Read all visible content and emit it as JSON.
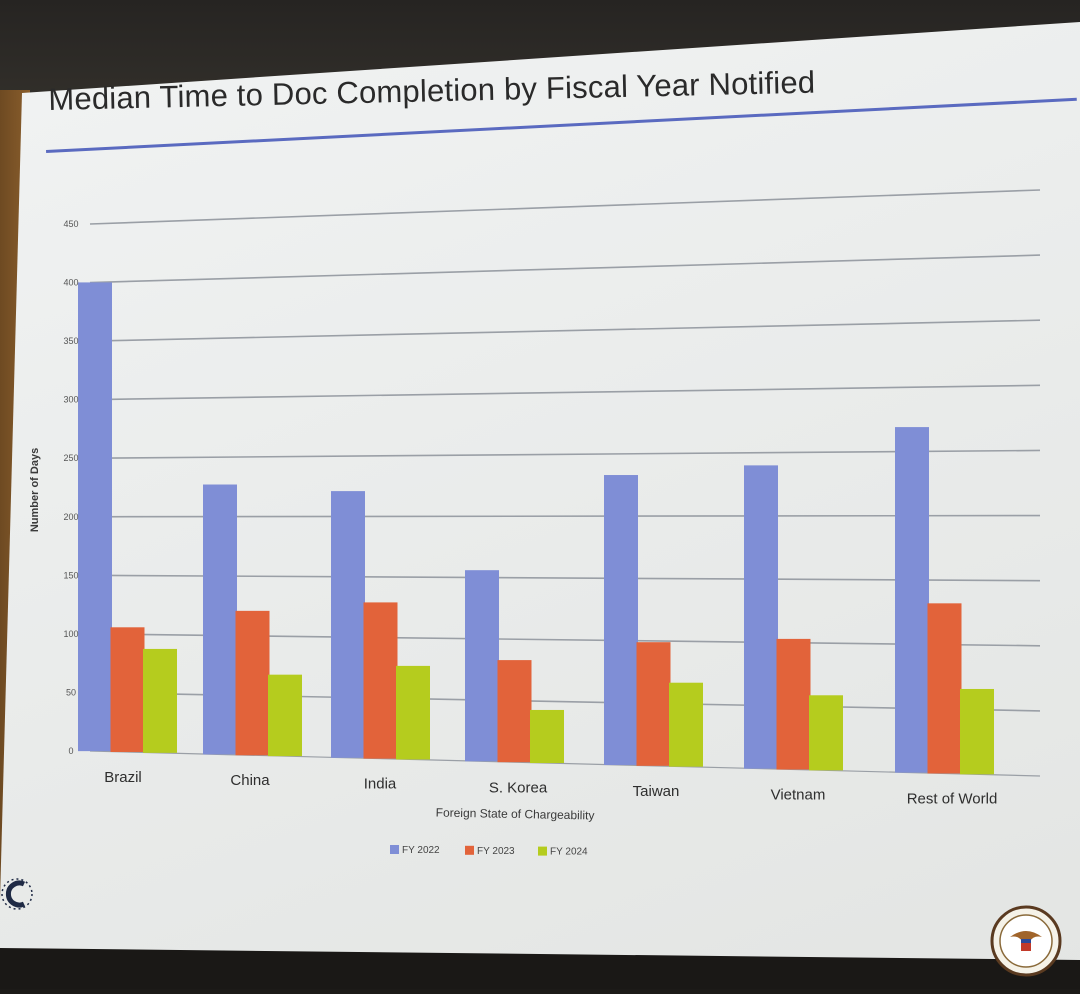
{
  "slide": {
    "title": "Median Time to Doc Completion by Fiscal Year Notified"
  },
  "colors": {
    "fy2022": "#7f8ed6",
    "fy2023": "#e2633a",
    "fy2024": "#b5cc1e",
    "grid": "#9a9fa6",
    "title_rule": "#5a6ac0"
  },
  "icons": {
    "logo": "c-logo-icon",
    "seal": "eagle-seal-icon"
  },
  "chart_data": {
    "type": "bar",
    "title": "Median Time to Doc Completion by Fiscal Year Notified",
    "xlabel": "Foreign State of Chargeability",
    "ylabel": "Number of Days",
    "ylim": [
      0,
      450
    ],
    "yticks": [
      0,
      50,
      100,
      150,
      200,
      250,
      300,
      350,
      400,
      450
    ],
    "grid": true,
    "legend_position": "bottom-center",
    "categories": [
      "Brazil",
      "China",
      "India",
      "S. Korea",
      "Taiwan",
      "Vietnam",
      "Rest of World"
    ],
    "series": [
      {
        "name": "FY 2022",
        "values": [
          400,
          227,
          221,
          156,
          233,
          240,
          269
        ]
      },
      {
        "name": "FY 2023",
        "values": [
          106,
          121,
          129,
          83,
          99,
          103,
          132
        ]
      },
      {
        "name": "FY 2024",
        "values": [
          88,
          68,
          77,
          43,
          67,
          59,
          66
        ]
      }
    ]
  }
}
